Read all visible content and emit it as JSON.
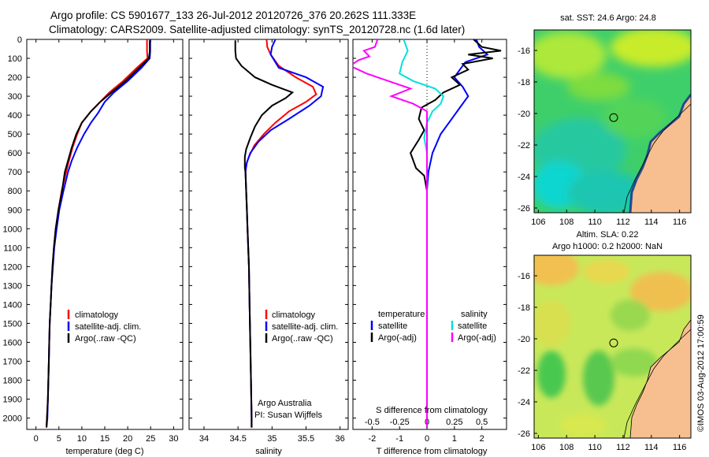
{
  "header": {
    "line1": "Argo profile: CS 5901677_133 26-Jul-2012 20120726_376 20.262S 111.333E",
    "line2": "Climatology: CARS2009. Satellite-adjusted climatology: synTS_20120728.nc (1.6d later)"
  },
  "colors": {
    "climatology": "#ff0000",
    "satellite": "#0000ff",
    "argo": "#000000",
    "sal_sat": "#00e0e0",
    "sal_argo": "#ff00ff",
    "land": "#f7bf90"
  },
  "depth_axis": {
    "ticks": [
      "0",
      "100",
      "200",
      "300",
      "400",
      "500",
      "600",
      "700",
      "800",
      "900",
      "1000",
      "1100",
      "1200",
      "1300",
      "1400",
      "1500",
      "1600",
      "1700",
      "1800",
      "1900",
      "2000"
    ]
  },
  "chart_data": [
    {
      "type": "line",
      "id": "temperature",
      "xlabel": "temperature (deg C)",
      "xticks": [
        "0",
        "5",
        "10",
        "15",
        "20",
        "25",
        "30"
      ],
      "xlim": [
        -2,
        32
      ],
      "ylim": [
        0,
        2060
      ],
      "legend": [
        "climatology",
        "satellite-adj. clim.",
        "Argo(..raw -QC)"
      ],
      "series": [
        {
          "name": "climatology",
          "color": "#ff0000",
          "points": [
            [
              24.2,
              0
            ],
            [
              24.2,
              60
            ],
            [
              24.3,
              100
            ],
            [
              22,
              150
            ],
            [
              19,
              220
            ],
            [
              16,
              280
            ],
            [
              14,
              330
            ],
            [
              12,
              380
            ],
            [
              10,
              440
            ],
            [
              9,
              500
            ],
            [
              8,
              570
            ],
            [
              7.2,
              640
            ],
            [
              6.6,
              700
            ],
            [
              5.6,
              800
            ],
            [
              4.9,
              900
            ],
            [
              4.3,
              1000
            ],
            [
              3.9,
              1100
            ],
            [
              3.6,
              1200
            ],
            [
              3.4,
              1300
            ],
            [
              3.2,
              1400
            ],
            [
              3.0,
              1500
            ],
            [
              2.9,
              1600
            ],
            [
              2.8,
              1700
            ],
            [
              2.7,
              1800
            ],
            [
              2.6,
              1900
            ],
            [
              2.4,
              2000
            ],
            [
              2.3,
              2050
            ]
          ]
        },
        {
          "name": "satellite-adj. clim.",
          "color": "#0000ff",
          "points": [
            [
              24.9,
              0
            ],
            [
              24.9,
              60
            ],
            [
              24.8,
              100
            ],
            [
              23,
              150
            ],
            [
              20,
              220
            ],
            [
              17,
              280
            ],
            [
              15,
              330
            ],
            [
              13.5,
              390
            ],
            [
              12,
              440
            ],
            [
              10.5,
              500
            ],
            [
              9,
              570
            ],
            [
              7.8,
              640
            ],
            [
              7,
              700
            ],
            [
              6,
              800
            ],
            [
              5.1,
              900
            ],
            [
              4.5,
              1000
            ],
            [
              4,
              1100
            ],
            [
              3.7,
              1200
            ],
            [
              3.4,
              1300
            ],
            [
              3.2,
              1400
            ],
            [
              3.0,
              1500
            ],
            [
              2.9,
              1600
            ],
            [
              2.8,
              1700
            ],
            [
              2.7,
              1800
            ],
            [
              2.6,
              1900
            ],
            [
              2.5,
              2000
            ],
            [
              2.3,
              2050
            ]
          ]
        },
        {
          "name": "Argo(..raw -QC)",
          "color": "#000000",
          "points": [
            [
              24.8,
              5
            ],
            [
              24.8,
              65
            ],
            [
              24.6,
              100
            ],
            [
              22.5,
              150
            ],
            [
              19.5,
              220
            ],
            [
              16.5,
              280
            ],
            [
              14,
              330
            ],
            [
              12,
              380
            ],
            [
              10,
              440
            ],
            [
              8.8,
              500
            ],
            [
              7.8,
              570
            ],
            [
              7,
              640
            ],
            [
              6.3,
              700
            ],
            [
              5.7,
              800
            ],
            [
              4.9,
              900
            ],
            [
              4.3,
              1000
            ],
            [
              3.9,
              1100
            ],
            [
              3.6,
              1200
            ],
            [
              3.4,
              1300
            ],
            [
              3.2,
              1400
            ],
            [
              3.0,
              1500
            ],
            [
              2.9,
              1600
            ],
            [
              2.8,
              1700
            ],
            [
              2.7,
              1800
            ],
            [
              2.6,
              1900
            ],
            [
              2.4,
              2000
            ],
            [
              2.3,
              2050
            ]
          ]
        }
      ]
    },
    {
      "type": "line",
      "id": "salinity",
      "xlabel": "salinity",
      "xticks": [
        "34",
        "34.5",
        "35",
        "35.5",
        "36"
      ],
      "xlim": [
        33.78,
        36.12
      ],
      "ylim": [
        0,
        2060
      ],
      "legend": [
        "climatology",
        "satellite-adj. clim.",
        "Argo(..raw -QC)"
      ],
      "annotation": [
        "Argo Australia",
        "PI: Susan Wijffels"
      ],
      "series": [
        {
          "name": "climatology",
          "color": "#ff0000",
          "points": [
            [
              34.92,
              0
            ],
            [
              34.93,
              40
            ],
            [
              34.98,
              80
            ],
            [
              35.1,
              140
            ],
            [
              35.35,
              200
            ],
            [
              35.6,
              250
            ],
            [
              35.65,
              290
            ],
            [
              35.5,
              330
            ],
            [
              35.25,
              380
            ],
            [
              35.05,
              440
            ],
            [
              34.88,
              500
            ],
            [
              34.74,
              560
            ],
            [
              34.66,
              620
            ],
            [
              34.62,
              660
            ],
            [
              34.61,
              700
            ],
            [
              34.62,
              800
            ],
            [
              34.63,
              900
            ],
            [
              34.64,
              1000
            ],
            [
              34.66,
              1200
            ],
            [
              34.67,
              1400
            ],
            [
              34.68,
              1600
            ],
            [
              34.69,
              1800
            ],
            [
              34.7,
              2000
            ],
            [
              34.7,
              2050
            ]
          ]
        },
        {
          "name": "satellite-adj. clim.",
          "color": "#0000ff",
          "points": [
            [
              35.05,
              0
            ],
            [
              35.0,
              40
            ],
            [
              34.98,
              80
            ],
            [
              35.1,
              150
            ],
            [
              35.5,
              200
            ],
            [
              35.75,
              250
            ],
            [
              35.72,
              300
            ],
            [
              35.55,
              350
            ],
            [
              35.25,
              420
            ],
            [
              34.98,
              480
            ],
            [
              34.8,
              540
            ],
            [
              34.68,
              600
            ],
            [
              34.63,
              650
            ],
            [
              34.61,
              700
            ],
            [
              34.62,
              800
            ],
            [
              34.63,
              900
            ],
            [
              34.64,
              1000
            ],
            [
              34.66,
              1200
            ],
            [
              34.67,
              1400
            ],
            [
              34.68,
              1600
            ],
            [
              34.69,
              1800
            ],
            [
              34.7,
              2000
            ],
            [
              34.7,
              2050
            ]
          ]
        },
        {
          "name": "Argo(..raw -QC)",
          "color": "#000000",
          "points": [
            [
              34.46,
              5
            ],
            [
              34.46,
              60
            ],
            [
              34.47,
              100
            ],
            [
              34.55,
              140
            ],
            [
              34.75,
              200
            ],
            [
              35.0,
              240
            ],
            [
              35.3,
              280
            ],
            [
              35.2,
              310
            ],
            [
              35.0,
              350
            ],
            [
              34.85,
              400
            ],
            [
              34.75,
              460
            ],
            [
              34.68,
              520
            ],
            [
              34.62,
              580
            ],
            [
              34.6,
              620
            ],
            [
              34.6,
              680
            ],
            [
              34.61,
              700
            ],
            [
              34.62,
              800
            ],
            [
              34.63,
              900
            ],
            [
              34.64,
              1000
            ],
            [
              34.66,
              1200
            ],
            [
              34.67,
              1400
            ],
            [
              34.68,
              1600
            ],
            [
              34.69,
              1800
            ],
            [
              34.7,
              2000
            ],
            [
              34.7,
              2050
            ]
          ]
        }
      ]
    },
    {
      "type": "line",
      "id": "difference",
      "xlabel_top": "S difference from climatology",
      "xticks_top": [
        "-0.5",
        "-0.25",
        "0",
        "0.25",
        "0.5"
      ],
      "xlabel": "T difference from climatology",
      "xticks": [
        "-2",
        "-1",
        "0",
        "1",
        "2"
      ],
      "xlim": [
        -2.7,
        2.9
      ],
      "ylim": [
        0,
        2060
      ],
      "legend_temperature": {
        "title": "temperature",
        "items": [
          "satellite",
          "Argo(-adj)"
        ]
      },
      "legend_salinity": {
        "title": "salinity",
        "items": [
          "satellite",
          "Argo(-adj)"
        ]
      },
      "series": [
        {
          "name": "temperature satellite",
          "color": "#0000ff",
          "points": [
            [
              1.8,
              0
            ],
            [
              1.9,
              40
            ],
            [
              2.2,
              80
            ],
            [
              1.4,
              120
            ],
            [
              1.2,
              160
            ],
            [
              1.0,
              200
            ],
            [
              1.3,
              250
            ],
            [
              1.5,
              300
            ],
            [
              1.2,
              360
            ],
            [
              0.9,
              420
            ],
            [
              0.5,
              500
            ],
            [
              0.2,
              600
            ],
            [
              0.05,
              700
            ],
            [
              0.0,
              800
            ],
            [
              0.0,
              2050
            ]
          ]
        },
        {
          "name": "temperature Argo(-adj)",
          "color": "#000000",
          "points": [
            [
              1.7,
              0
            ],
            [
              2.0,
              40
            ],
            [
              2.7,
              60
            ],
            [
              1.5,
              80
            ],
            [
              2.4,
              100
            ],
            [
              1.3,
              130
            ],
            [
              1.5,
              160
            ],
            [
              0.9,
              200
            ],
            [
              1.2,
              240
            ],
            [
              0.6,
              280
            ],
            [
              0.3,
              320
            ],
            [
              -0.2,
              360
            ],
            [
              -0.3,
              420
            ],
            [
              -0.1,
              480
            ],
            [
              -0.3,
              530
            ],
            [
              -0.6,
              600
            ],
            [
              -0.4,
              680
            ],
            [
              -0.1,
              720
            ],
            [
              0.0,
              800
            ],
            [
              0.0,
              2050
            ]
          ]
        },
        {
          "name": "salinity satellite",
          "color": "#00e0e0",
          "points": [
            [
              -0.85,
              0
            ],
            [
              -0.7,
              60
            ],
            [
              -0.9,
              120
            ],
            [
              -1.0,
              180
            ],
            [
              -0.5,
              220
            ],
            [
              0.3,
              260
            ],
            [
              0.6,
              300
            ],
            [
              0.5,
              340
            ],
            [
              0.2,
              380
            ],
            [
              0.0,
              440
            ],
            [
              -0.1,
              520
            ],
            [
              0.0,
              600
            ],
            [
              0.0,
              2050
            ]
          ]
        },
        {
          "name": "salinity Argo(-adj)",
          "color": "#ff00ff",
          "points": [
            [
              -1.8,
              0
            ],
            [
              -1.9,
              40
            ],
            [
              -2.3,
              60
            ],
            [
              -2.1,
              90
            ],
            [
              -2.5,
              110
            ],
            [
              -2.8,
              140
            ],
            [
              -2.2,
              180
            ],
            [
              -1.4,
              220
            ],
            [
              -0.6,
              260
            ],
            [
              -1.3,
              300
            ],
            [
              -0.5,
              340
            ],
            [
              0.0,
              380
            ],
            [
              0.0,
              2050
            ]
          ]
        }
      ]
    },
    {
      "type": "heatmap",
      "id": "sst-map",
      "title": "sat. SST: 24.6 Argo: 24.8",
      "xticks": [
        "106",
        "108",
        "110",
        "112",
        "114",
        "116"
      ],
      "yticks": [
        "-16",
        "-18",
        "-20",
        "-22",
        "-24",
        "-26"
      ],
      "xlim": [
        105.7,
        116.8
      ],
      "ylim": [
        -26.3,
        -14.7
      ],
      "marker": {
        "lon": 111.333,
        "lat": -20.262
      }
    },
    {
      "type": "heatmap",
      "id": "sla-map",
      "title1": "Altim. SLA: 0.22",
      "title2": "Argo h1000: 0.2 h2000: NaN",
      "xticks": [
        "106",
        "108",
        "110",
        "112",
        "114",
        "116"
      ],
      "yticks": [
        "-16",
        "-18",
        "-20",
        "-22",
        "-24",
        "-26"
      ],
      "xlim": [
        105.7,
        116.8
      ],
      "ylim": [
        -26.3,
        -14.7
      ],
      "marker": {
        "lon": 111.333,
        "lat": -20.262
      }
    }
  ],
  "footer": {
    "stamp": "©IMOS 03-Aug-2012 17:00:59"
  }
}
